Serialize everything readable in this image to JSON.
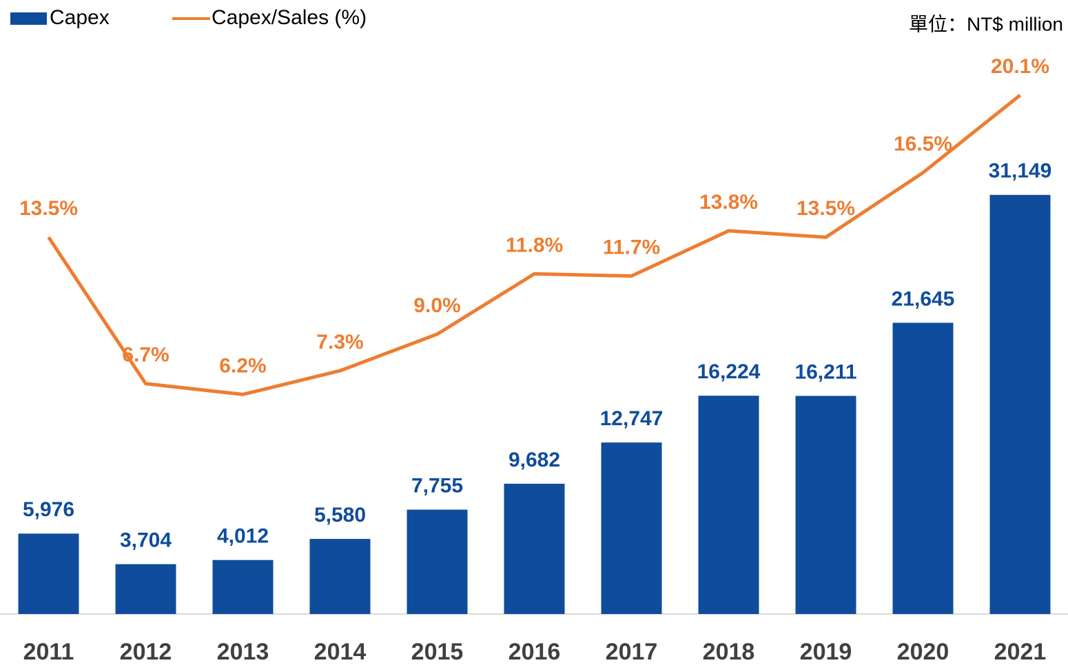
{
  "chart_data": {
    "type": "combo",
    "annotation": "單位：NT$ million",
    "categories": [
      "2011",
      "2012",
      "2013",
      "2014",
      "2015",
      "2016",
      "2017",
      "2018",
      "2019",
      "2020",
      "2021"
    ],
    "series": [
      {
        "name": "Capex",
        "type": "bar",
        "color": "#0f4c9c",
        "values": [
          5976,
          3704,
          4012,
          5580,
          7755,
          9682,
          12747,
          16224,
          16211,
          21645,
          31149
        ],
        "value_labels": [
          "5,976",
          "3,704",
          "4,012",
          "5,580",
          "7,755",
          "9,682",
          "12,747",
          "16,224",
          "16,211",
          "21,645",
          "31,149"
        ]
      },
      {
        "name": "Capex/Sales (%)",
        "type": "line",
        "axis": "y2",
        "color": "#ed7d31",
        "values": [
          13.5,
          6.7,
          6.2,
          7.3,
          9.0,
          11.8,
          11.7,
          13.8,
          13.5,
          16.5,
          20.1
        ],
        "value_labels": [
          "13.5%",
          "6.7%",
          "6.2%",
          "7.3%",
          "9.0%",
          "11.8%",
          "11.7%",
          "13.8%",
          "13.5%",
          "16.5%",
          "20.1%"
        ]
      }
    ],
    "ylim": [
      0,
      40000
    ],
    "y2lim": [
      -4,
      21
    ],
    "legend": "top-left"
  }
}
